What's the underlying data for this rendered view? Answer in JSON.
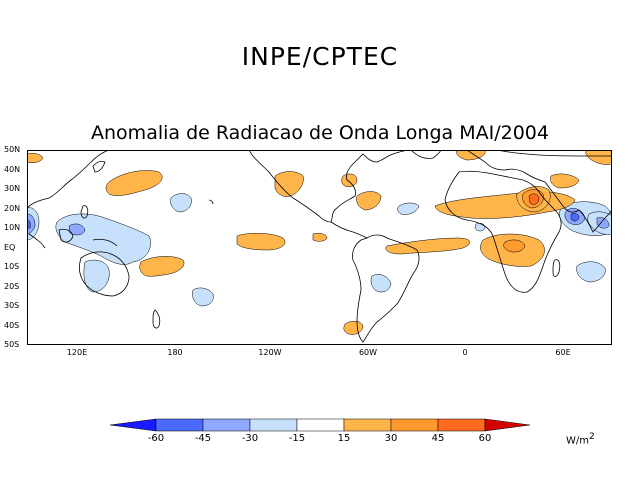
{
  "header": {
    "organization": "INPE/CPTEC"
  },
  "map": {
    "title": "Anomalia de Radiacao de Onda Longa MAI/2004",
    "latitude_labels": [
      "50N",
      "40N",
      "30N",
      "20N",
      "10N",
      "EQ",
      "10S",
      "20S",
      "30S",
      "40S",
      "50S"
    ],
    "longitude_labels": [
      "120E",
      "180",
      "120W",
      "60W",
      "0",
      "60E"
    ]
  },
  "legend": {
    "tick_labels": [
      "-60",
      "-45",
      "-30",
      "-15",
      "15",
      "30",
      "45",
      "60"
    ],
    "unit": "W/m",
    "unit_exponent": "2",
    "colors": [
      "#1a1aff",
      "#4a6bff",
      "#8fa8ff",
      "#c7e0fb",
      "#ffffff",
      "#ffb54a",
      "#ff9a2f",
      "#ff6a1f",
      "#d40000"
    ]
  }
}
